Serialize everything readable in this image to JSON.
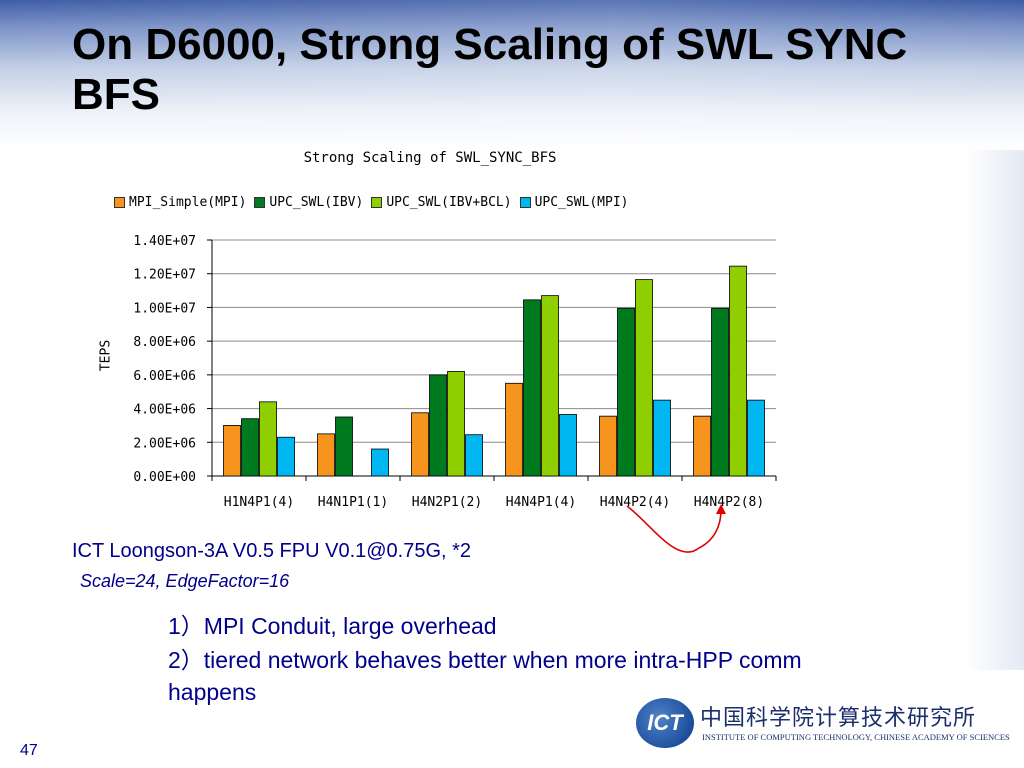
{
  "slide": {
    "title": "On D6000, Strong Scaling of SWL SYNC BFS",
    "info": "ICT Loongson-3A V0.5 FPU V0.1@0.75G, *2",
    "scale": "Scale=24, EdgeFactor=16",
    "notes": [
      "1）MPI Conduit, large overhead",
      "2）tiered network behaves better when more intra-HPP comm happens"
    ],
    "page_number": "47",
    "logo": {
      "mark": "ICT",
      "cn": "中国科学院计算技术研究所",
      "en": "INSTITUTE OF COMPUTING TECHNOLOGY, CHINESE ACADEMY OF SCIENCES"
    }
  },
  "colors": {
    "series": [
      "#f7941d",
      "#007a1f",
      "#8fce00",
      "#00b7f1"
    ],
    "title_text": "#000000",
    "body_text": "#00008b",
    "annotation_arrow": "#e00000"
  },
  "chart_data": {
    "type": "bar",
    "title": "Strong Scaling of SWL_SYNC_BFS",
    "xlabel": "",
    "ylabel": "TEPS",
    "categories": [
      "H1N4P1(4)",
      "H4N1P1(1)",
      "H4N2P1(2)",
      "H4N4P1(4)",
      "H4N4P2(4)",
      "H4N4P2(8)"
    ],
    "series": [
      {
        "name": "MPI_Simple(MPI)",
        "values": [
          3000000,
          2500000,
          3750000,
          5500000,
          3550000,
          3550000
        ]
      },
      {
        "name": "UPC_SWL(IBV)",
        "values": [
          3400000,
          3500000,
          6000000,
          10450000,
          9950000,
          9950000
        ]
      },
      {
        "name": "UPC_SWL(IBV+BCL)",
        "values": [
          4400000,
          null,
          6200000,
          10700000,
          11650000,
          12450000
        ]
      },
      {
        "name": "UPC_SWL(MPI)",
        "values": [
          2300000,
          1600000,
          2450000,
          3650000,
          4500000,
          4500000
        ]
      }
    ],
    "ylim": [
      0,
      14000000
    ],
    "yticks": [
      "0.00E+00",
      "2.00E+06",
      "4.00E+06",
      "6.00E+06",
      "8.00E+06",
      "1.00E+07",
      "1.20E+07",
      "1.40E+07"
    ],
    "grid": true,
    "legend": "top",
    "annotation": "arrow from H4N4P2(4) to H4N4P2(8)"
  }
}
